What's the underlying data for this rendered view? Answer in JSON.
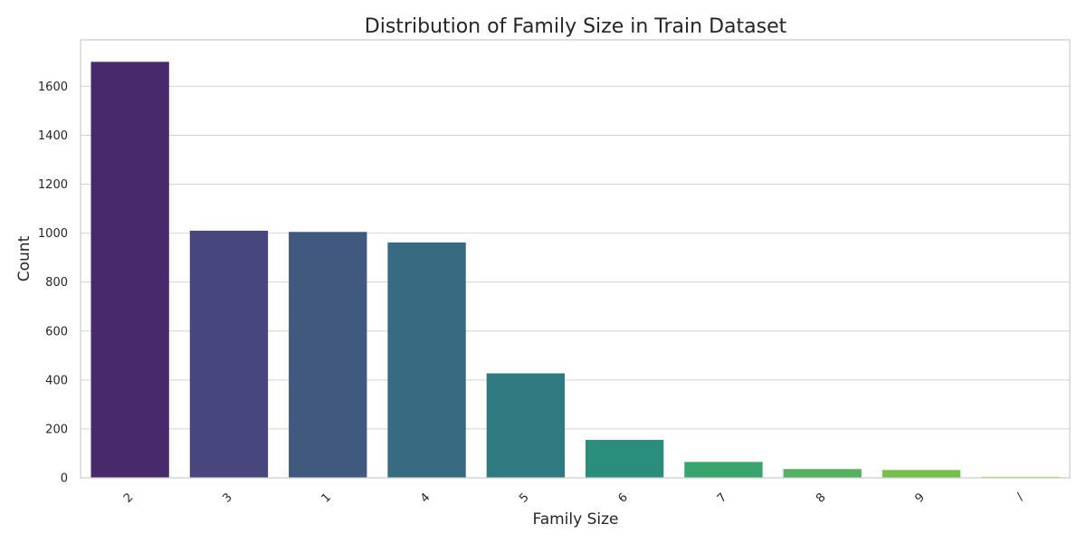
{
  "chart_data": {
    "type": "bar",
    "title": "Distribution of Family  Size in Train Dataset",
    "xlabel": "Family  Size",
    "ylabel": "Count",
    "categories": [
      "2",
      "3",
      "1",
      "4",
      "5",
      "6",
      "7",
      "8",
      "9",
      "/"
    ],
    "values": [
      1700,
      1010,
      1005,
      962,
      427,
      155,
      65,
      36,
      32,
      4
    ],
    "colors": [
      "#482a6b",
      "#47467d",
      "#41597f",
      "#386a81",
      "#2f7a80",
      "#2b8d7b",
      "#3aa46f",
      "#53b15f",
      "#74c04a",
      "#9fd037"
    ],
    "ylim": [
      0,
      1790
    ],
    "yticks": [
      0,
      200,
      400,
      600,
      800,
      1000,
      1200,
      1400,
      1600
    ],
    "ytick_labels": [
      "0",
      "200",
      "400",
      "600",
      "800",
      "1000",
      "1200",
      "1400",
      "1600"
    ],
    "grid": true,
    "grid_axis": "y",
    "xtick_rotation": 45
  }
}
